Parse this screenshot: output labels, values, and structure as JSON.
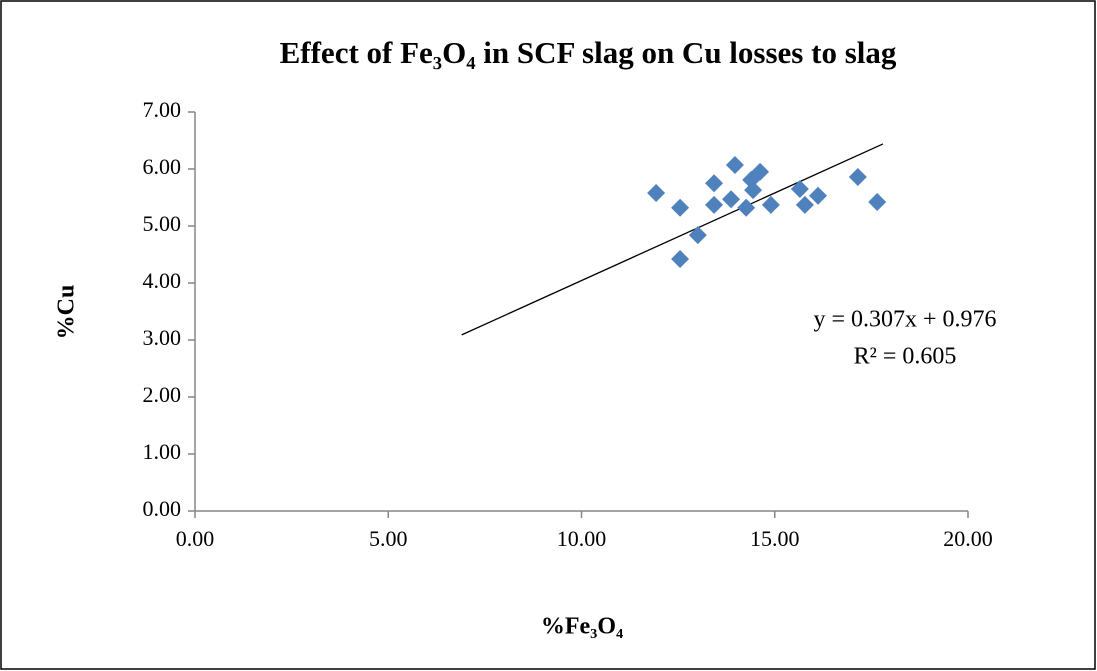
{
  "chart_data": {
    "type": "scatter",
    "title": "Effect of Fe₃O₄ in SCF slag on Cu losses to slag",
    "x_label": "%Fe₃O₄",
    "y_label": "%Cu",
    "series": [
      {
        "color": "#4f81bd",
        "x": [
          11.93,
          12.55,
          12.55,
          13.01,
          13.43,
          13.43,
          13.97,
          13.87,
          14.26,
          14.39,
          14.44,
          14.62,
          14.9,
          15.65,
          15.78,
          16.12,
          17.15,
          17.65
        ],
        "values": [
          5.58,
          5.32,
          4.42,
          4.84,
          5.75,
          5.37,
          6.07,
          5.47,
          5.32,
          5.81,
          5.63,
          5.95,
          5.37,
          5.65,
          5.37,
          5.53,
          5.86,
          5.42
        ]
      }
    ],
    "trendline": {
      "x": [
        6.9,
        17.8
      ],
      "values": [
        3.09,
        6.44
      ],
      "color": "#000000",
      "equation": "y = 0.307x + 0.976",
      "r_squared": "R² = 0.605"
    },
    "xlim": [
      0,
      20
    ],
    "xticks": [
      {
        "value": 0,
        "label": "0.00"
      },
      {
        "value": 5,
        "label": "5.00"
      },
      {
        "value": 10,
        "label": "10.00"
      },
      {
        "value": 15,
        "label": "15.00"
      },
      {
        "value": 20,
        "label": "20.00"
      }
    ],
    "ylim": [
      0,
      7
    ],
    "yticks": [
      {
        "value": 0,
        "label": "0.00"
      },
      {
        "value": 1,
        "label": "1.00"
      },
      {
        "value": 2,
        "label": "2.00"
      },
      {
        "value": 3,
        "label": "3.00"
      },
      {
        "value": 4,
        "label": "4.00"
      },
      {
        "value": 5,
        "label": "5.00"
      },
      {
        "value": 6,
        "label": "6.00"
      },
      {
        "value": 7,
        "label": "7.00"
      }
    ],
    "grid": false
  }
}
